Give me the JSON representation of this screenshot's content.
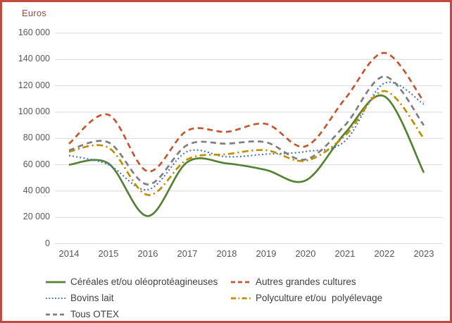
{
  "frame": {
    "border_color": "#C04A3F",
    "background": "#FFFFFF"
  },
  "colors": {
    "ylabel_text": "#964A41",
    "axis_text": "#575757",
    "legend_text": "#404040",
    "gridline": "#D9D9D9"
  },
  "chart_data": {
    "type": "line",
    "title": "",
    "ylabel": "Euros",
    "xlabel": "",
    "grid": true,
    "smooth": true,
    "legend_position": "bottom",
    "categories": [
      "2014",
      "2015",
      "2016",
      "2017",
      "2018",
      "2019",
      "2020",
      "2021",
      "2022",
      "2023"
    ],
    "y_axis": {
      "min": 0,
      "max": 160000,
      "step": 20000,
      "tick_labels": [
        "0",
        "20 000",
        "40 000",
        "60 000",
        "80 000",
        "100 000",
        "120 000",
        "140 000",
        "160 000"
      ]
    },
    "series": [
      {
        "name": "Céréales et/ou oléoprotéagineuses",
        "color": "#548235",
        "dash": "solid",
        "values": [
          60000,
          61000,
          21000,
          62000,
          61000,
          56000,
          48000,
          84000,
          112000,
          54000
        ]
      },
      {
        "name": "Autres grandes cultures",
        "color": "#C45531",
        "dash": "dashed",
        "values": [
          76000,
          98000,
          55000,
          86000,
          85000,
          91000,
          74000,
          110000,
          145000,
          108000
        ]
      },
      {
        "name": "Bovins lait",
        "color": "#4472C4",
        "dash": "dotted",
        "values": [
          67000,
          60000,
          41000,
          70000,
          66000,
          68000,
          70000,
          78000,
          122000,
          106000
        ]
      },
      {
        "name": "Polyculture et/ou  polyélevage",
        "color": "#BF8F00",
        "dash": "dashdot",
        "values": [
          70000,
          73000,
          37000,
          64000,
          68000,
          71000,
          63000,
          82000,
          116000,
          80000
        ]
      },
      {
        "name": "Tous OTEX",
        "color": "#7F7F7F",
        "dash": "dashed",
        "values": [
          71000,
          77000,
          45000,
          75000,
          76000,
          77000,
          64000,
          90000,
          127000,
          90000
        ]
      }
    ],
    "legend_columns": [
      [
        0,
        2,
        4
      ],
      [
        1,
        3
      ]
    ]
  }
}
